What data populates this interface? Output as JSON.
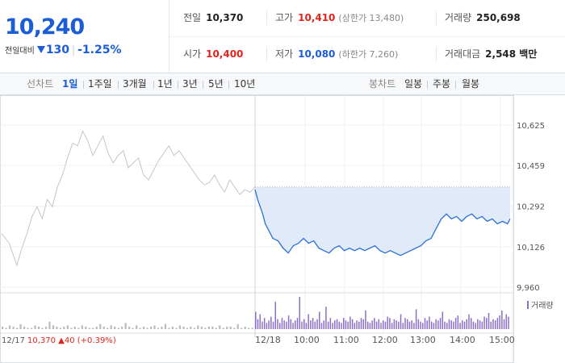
{
  "quote": {
    "price": "10,240",
    "change_label": "전일대비",
    "change_value": "130",
    "change_pct": "-1.25%",
    "stats_row1": [
      {
        "label": "전일",
        "value": "10,370",
        "color": "normal"
      },
      {
        "label": "고가",
        "value": "10,410",
        "color": "red",
        "sub": "(상한가 13,480)"
      },
      {
        "label": "거래량",
        "value": "250,698",
        "color": "normal"
      }
    ],
    "stats_row2": [
      {
        "label": "시가",
        "value": "10,400",
        "color": "red"
      },
      {
        "label": "저가",
        "value": "10,080",
        "color": "blue",
        "sub": "(하한가 7,260)"
      },
      {
        "label": "거래대금",
        "value": "2,548 백만",
        "color": "normal"
      }
    ]
  },
  "tabs": {
    "line_label": "선차트",
    "line_tabs": [
      "1일",
      "1주일",
      "3개월",
      "1년",
      "3년",
      "5년",
      "10년"
    ],
    "line_active": "1일",
    "candle_label": "봉차트",
    "candle_tabs": [
      "일봉",
      "주봉",
      "월봉"
    ]
  },
  "chart_data": {
    "type": "line",
    "y_ticks": [
      "10,625",
      "10,459",
      "10,292",
      "10,126",
      "9,960"
    ],
    "y_tick_values": [
      10625,
      10459,
      10292,
      10126,
      9960
    ],
    "ylim": [
      9960,
      10625
    ],
    "prev_close": 10370,
    "x_tick_labels": [
      "12/18",
      "10:00",
      "11:00",
      "12:00",
      "13:00",
      "14:00",
      "15:00"
    ],
    "prev_day_label": "12/17",
    "prev_day_close": "10,370",
    "prev_day_change": "40",
    "prev_day_pct": "(+0.39%)",
    "volume_legend": "거래량",
    "series": [
      {
        "name": "12/17",
        "color": "#c4c6c9",
        "x": [
          0,
          0.03,
          0.06,
          0.08,
          0.1,
          0.12,
          0.14,
          0.16,
          0.18,
          0.2,
          0.22,
          0.24,
          0.26,
          0.28,
          0.3,
          0.32,
          0.34,
          0.36,
          0.38,
          0.4,
          0.42,
          0.44,
          0.46,
          0.48,
          0.5,
          0.52,
          0.54,
          0.56,
          0.58,
          0.6,
          0.62,
          0.64,
          0.66,
          0.68,
          0.7,
          0.72,
          0.74,
          0.76,
          0.78,
          0.8,
          0.82,
          0.84,
          0.86,
          0.88,
          0.9,
          0.92,
          0.94,
          0.96,
          0.98,
          1.0
        ],
        "values": [
          10180,
          10140,
          10050,
          10120,
          10180,
          10250,
          10290,
          10240,
          10320,
          10290,
          10370,
          10420,
          10490,
          10550,
          10540,
          10600,
          10560,
          10500,
          10540,
          10580,
          10510,
          10470,
          10500,
          10520,
          10450,
          10470,
          10490,
          10420,
          10400,
          10440,
          10480,
          10510,
          10540,
          10500,
          10520,
          10490,
          10460,
          10430,
          10400,
          10380,
          10390,
          10420,
          10380,
          10350,
          10400,
          10370,
          10340,
          10360,
          10350,
          10370
        ]
      },
      {
        "name": "12/18",
        "color": "#2b6fd6",
        "x": [
          0,
          0.01,
          0.02,
          0.03,
          0.04,
          0.05,
          0.07,
          0.09,
          0.11,
          0.13,
          0.15,
          0.17,
          0.19,
          0.21,
          0.23,
          0.25,
          0.27,
          0.29,
          0.31,
          0.33,
          0.35,
          0.37,
          0.39,
          0.41,
          0.43,
          0.45,
          0.47,
          0.49,
          0.51,
          0.53,
          0.55,
          0.57,
          0.59,
          0.61,
          0.63,
          0.65,
          0.67,
          0.69,
          0.71,
          0.73,
          0.75,
          0.77,
          0.79,
          0.81,
          0.83,
          0.85,
          0.87,
          0.89,
          0.91,
          0.93,
          0.95,
          0.97,
          0.99,
          1.0
        ],
        "values": [
          10360,
          10320,
          10290,
          10260,
          10220,
          10200,
          10160,
          10150,
          10120,
          10100,
          10130,
          10140,
          10160,
          10140,
          10150,
          10120,
          10110,
          10100,
          10120,
          10130,
          10110,
          10120,
          10110,
          10120,
          10110,
          10120,
          10130,
          10110,
          10100,
          10110,
          10100,
          10090,
          10100,
          10110,
          10120,
          10130,
          10150,
          10160,
          10200,
          10240,
          10260,
          10240,
          10250,
          10230,
          10250,
          10260,
          10240,
          10250,
          10230,
          10240,
          10220,
          10230,
          10220,
          10240
        ]
      }
    ],
    "volume_day1": [
      2,
      1,
      3,
      2,
      1,
      4,
      2,
      1,
      1,
      3,
      2,
      1,
      2,
      6,
      3,
      2,
      1,
      2,
      3,
      1,
      2,
      1,
      3,
      2,
      1,
      1,
      2,
      4,
      2,
      1,
      3,
      2,
      1,
      2,
      5,
      2,
      1,
      3,
      1,
      2,
      1,
      2,
      3,
      1,
      2,
      4,
      1,
      2,
      1,
      3,
      2,
      1,
      2,
      1,
      3,
      2,
      1,
      2,
      2,
      1,
      3,
      1,
      2,
      2,
      1,
      4,
      1,
      2,
      1,
      1
    ],
    "volume_day2": [
      14,
      8,
      12,
      6,
      9,
      5,
      7,
      10,
      6,
      22,
      8,
      5,
      9,
      7,
      6,
      11,
      8,
      5,
      7,
      9,
      26,
      6,
      8,
      5,
      12,
      7,
      9,
      6,
      8,
      14,
      5,
      7,
      18,
      6,
      9,
      5,
      7,
      8,
      6,
      5,
      9,
      7,
      6,
      10,
      8,
      5,
      7,
      6,
      9,
      8,
      15,
      6,
      5,
      7,
      9,
      6,
      8,
      5,
      7,
      6,
      10,
      9,
      5,
      8,
      7,
      6,
      12,
      5,
      9,
      8,
      6,
      7,
      5,
      16,
      8,
      6,
      5,
      9,
      7,
      10,
      6,
      5,
      8,
      7,
      9,
      14,
      6,
      5,
      8,
      7,
      6,
      9,
      11,
      5,
      7,
      6,
      8,
      12,
      9,
      6,
      5,
      8,
      7,
      6,
      10,
      9,
      13,
      6,
      8,
      7,
      9,
      11,
      15,
      8,
      12,
      10
    ]
  }
}
